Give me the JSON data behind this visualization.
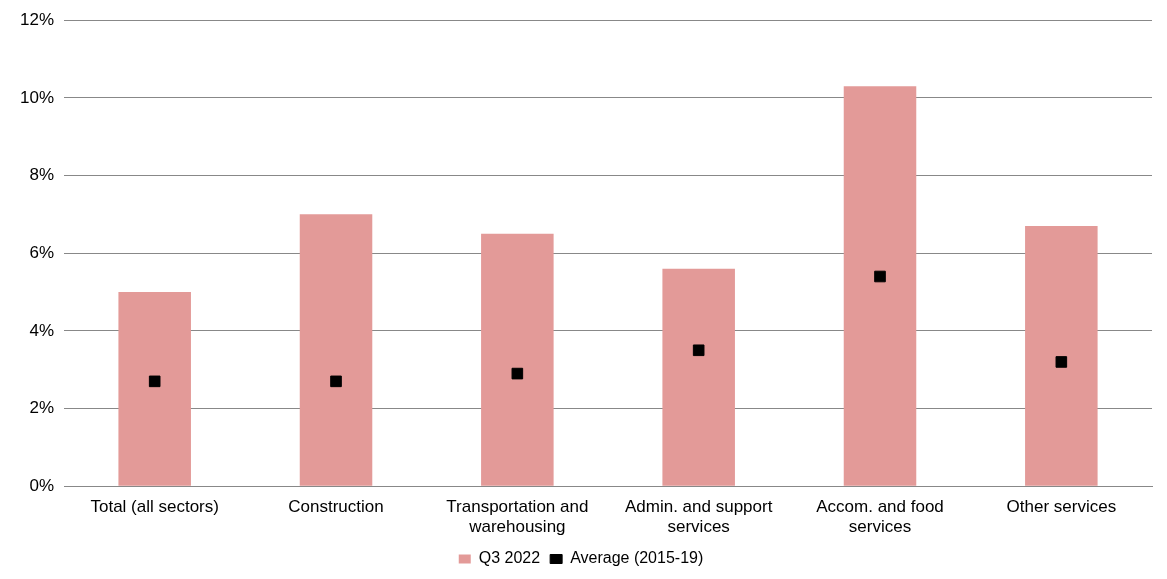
{
  "chart_data": {
    "type": "bar",
    "categories": [
      "Total (all sectors)",
      "Construction",
      "Transportation and warehousing",
      "Admin. and support services",
      "Accom. and food services",
      "Other services"
    ],
    "series": [
      {
        "name": "Q3 2022",
        "color": "#e39a98",
        "values": [
          5.0,
          7.0,
          6.5,
          5.6,
          10.3,
          6.7
        ]
      },
      {
        "name": "Average (2015-19)",
        "type": "scatter",
        "color": "#000000",
        "marker": "square",
        "values": [
          2.7,
          2.7,
          2.9,
          3.5,
          5.4,
          3.2
        ]
      }
    ],
    "ylim": [
      0,
      12
    ],
    "yticks": [
      {
        "value": 0,
        "label": "0%"
      },
      {
        "value": 2,
        "label": "2%"
      },
      {
        "value": 4,
        "label": "4%"
      },
      {
        "value": 6,
        "label": "6%"
      },
      {
        "value": 8,
        "label": "8%"
      },
      {
        "value": 10,
        "label": "10%"
      },
      {
        "value": 12,
        "label": "12%"
      }
    ],
    "grid": "y",
    "legend": "bottom"
  }
}
